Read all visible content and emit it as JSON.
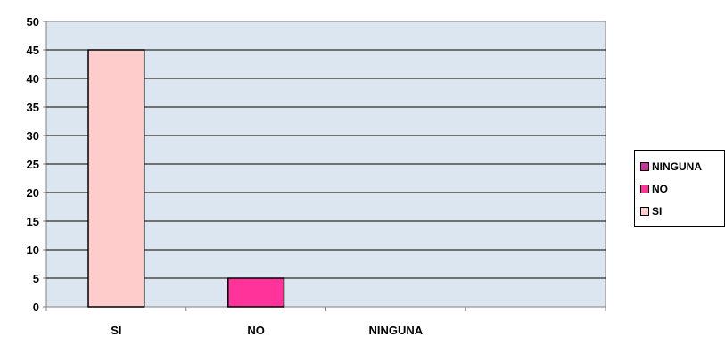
{
  "chart_data": {
    "type": "bar",
    "categories": [
      "SI",
      "NO",
      "NINGUNA"
    ],
    "values": [
      45,
      5,
      0
    ],
    "ylim": [
      0,
      50
    ],
    "yticks": [
      0,
      5,
      10,
      15,
      20,
      25,
      30,
      35,
      40,
      45,
      50
    ],
    "grid": true,
    "legend_position": "right",
    "colors": {
      "SI": "#FFCCCC",
      "NO": "#FF3399",
      "NINGUNA": "#CC3399",
      "plot_bg": "#DCE6F1"
    },
    "legend": [
      {
        "label": "NINGUNA",
        "color": "#CC3399"
      },
      {
        "label": "NO",
        "color": "#FF3399"
      },
      {
        "label": "SI",
        "color": "#FFCCCC"
      }
    ]
  }
}
